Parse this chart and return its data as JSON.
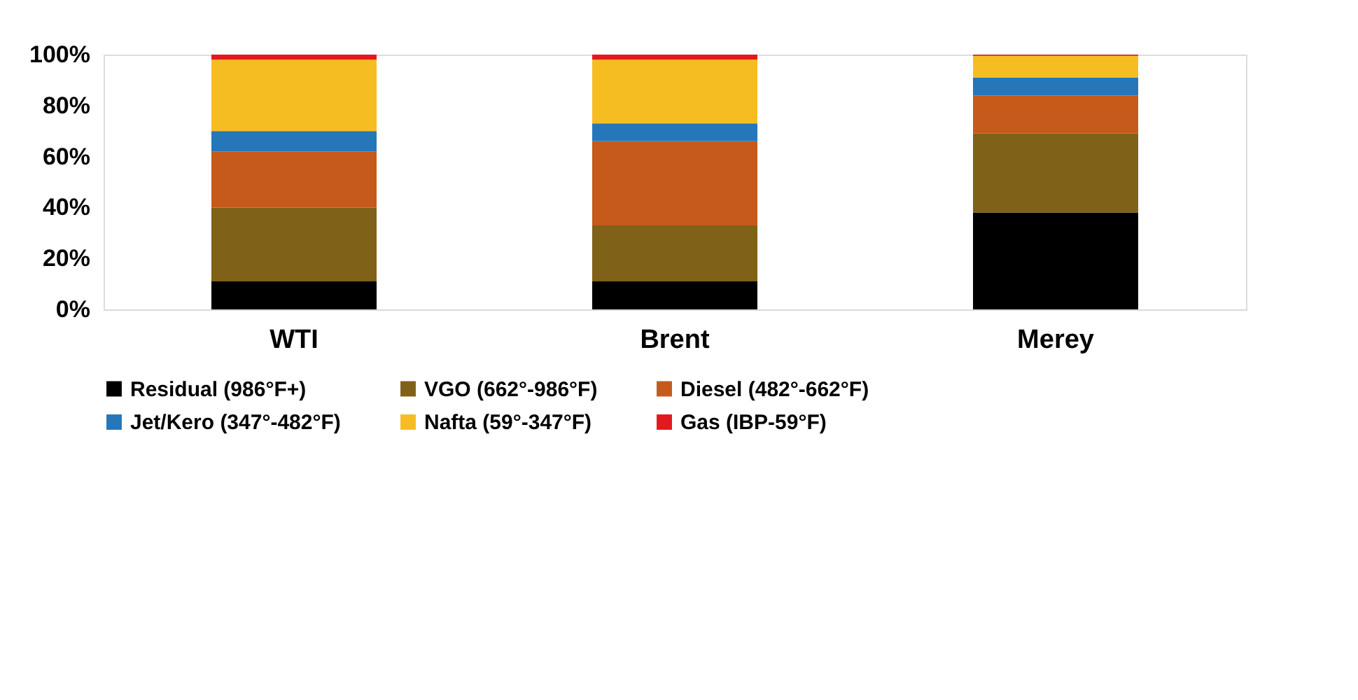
{
  "chart_data": {
    "type": "bar",
    "stacked": true,
    "categories": [
      "WTI",
      "Brent",
      "Merey"
    ],
    "series": [
      {
        "name": "Residual (986°F+)",
        "color": "#000000",
        "values": [
          11,
          11,
          38
        ]
      },
      {
        "name": "VGO (662°-986°F)",
        "color": "#7f6118",
        "values": [
          29,
          22,
          31
        ]
      },
      {
        "name": "Diesel (482°-662°F)",
        "color": "#c55a1a",
        "values": [
          22,
          33,
          15
        ]
      },
      {
        "name": "Jet/Kero (347°-482°F)",
        "color": "#2577b9",
        "values": [
          8,
          7,
          7
        ]
      },
      {
        "name": "Nafta (59°-347°F)",
        "color": "#f6bd22",
        "values": [
          28,
          25,
          8.5
        ]
      },
      {
        "name": "Gas (IBP-59°F)",
        "color": "#e3191f",
        "values": [
          2,
          2,
          0.5
        ]
      }
    ],
    "ylim": [
      0,
      100
    ],
    "yticks": [
      {
        "value": 0,
        "label": "0%"
      },
      {
        "value": 20,
        "label": "20%"
      },
      {
        "value": 40,
        "label": "40%"
      },
      {
        "value": 60,
        "label": "60%"
      },
      {
        "value": 80,
        "label": "80%"
      },
      {
        "value": 100,
        "label": "100%"
      }
    ],
    "grid": false,
    "legend": "bottom"
  }
}
